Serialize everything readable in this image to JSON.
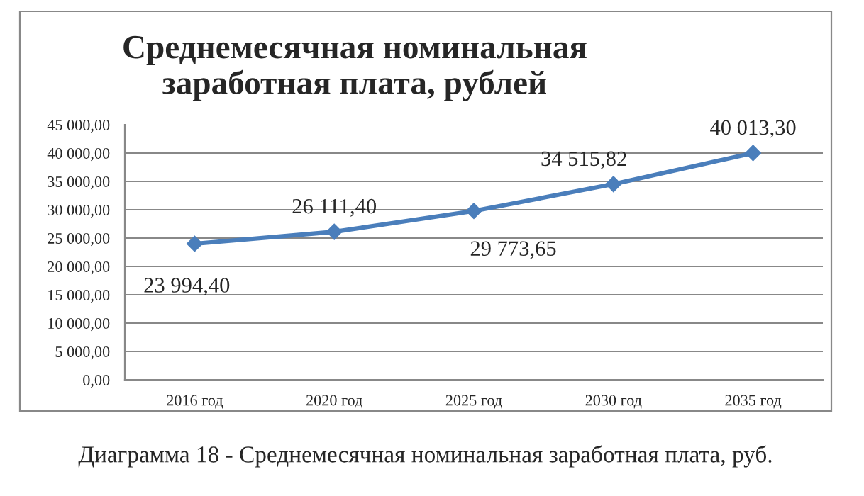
{
  "chart_data": {
    "type": "line",
    "title": "Среднемесячная номинальная\nзаработная плата, рублей",
    "categories": [
      "2016 год",
      "2020 год",
      "2025 год",
      "2030 год",
      "2035 год"
    ],
    "series": [
      {
        "color": "#4a7ebb",
        "values": [
          23994.4,
          26111.4,
          29773.65,
          34515.82,
          40013.3
        ],
        "value_labels": [
          "23 994,40",
          "26 111,40",
          "29 773,65",
          "34 515,82",
          "40 013,30"
        ]
      }
    ],
    "ylim": [
      0,
      45000
    ],
    "yticks": [
      {
        "value": 0,
        "label": "0,00"
      },
      {
        "value": 5000,
        "label": "5 000,00"
      },
      {
        "value": 10000,
        "label": "10 000,00"
      },
      {
        "value": 15000,
        "label": "15 000,00"
      },
      {
        "value": 20000,
        "label": "20 000,00"
      },
      {
        "value": 25000,
        "label": "25 000,00"
      },
      {
        "value": 30000,
        "label": "30 000,00"
      },
      {
        "value": 35000,
        "label": "35 000,00"
      },
      {
        "value": 40000,
        "label": "40 000,00"
      },
      {
        "value": 45000,
        "label": "45 000,00"
      }
    ],
    "grid": "y",
    "marker": "diamond",
    "line_style": "solid",
    "legend": false,
    "annotations": [
      "Диаграмма 18 - Среднемесячная номинальная заработная плата, руб."
    ]
  }
}
